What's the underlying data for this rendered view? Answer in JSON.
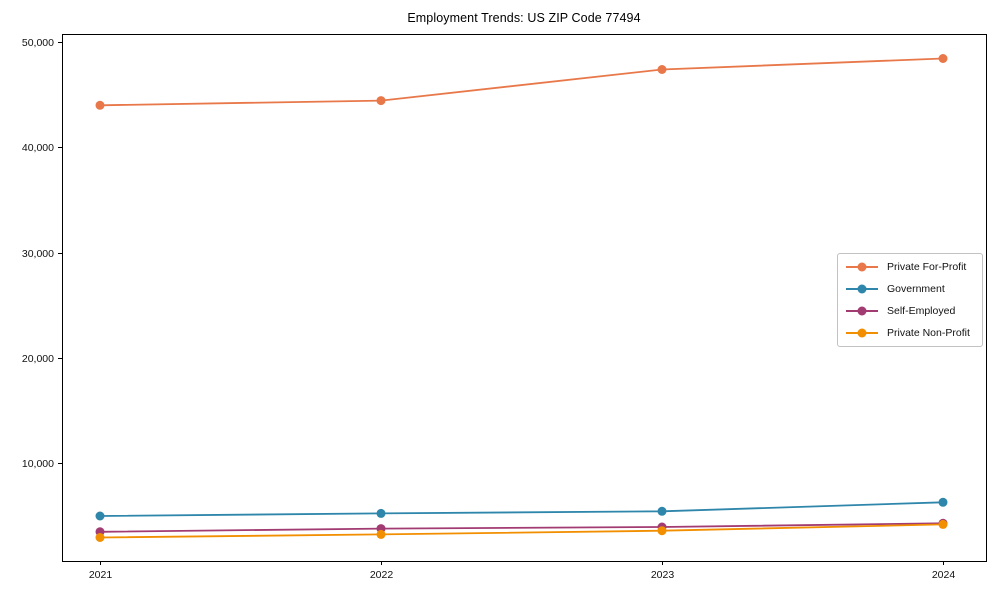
{
  "title": "Employment Trends: US ZIP Code 77494",
  "chart_data": {
    "type": "line",
    "title": "Employment Trends: US ZIP Code 77494",
    "categories": [
      "2021",
      "2022",
      "2023",
      "2024"
    ],
    "series": [
      {
        "name": "Private For-Profit",
        "color": "#E8784A",
        "values": [
          44000,
          44450,
          47400,
          48450
        ]
      },
      {
        "name": "Government",
        "color": "#2E86AB",
        "values": [
          4950,
          5200,
          5400,
          6250
        ]
      },
      {
        "name": "Self-Employed",
        "color": "#A23B72",
        "values": [
          3450,
          3750,
          3900,
          4250
        ]
      },
      {
        "name": "Private Non-Profit",
        "color": "#F18F01",
        "values": [
          2900,
          3200,
          3550,
          4150
        ]
      }
    ],
    "xlabel": "",
    "ylabel": "",
    "ylim": [
      670,
      50780
    ],
    "yticks": [
      {
        "value": 10000,
        "label": "10,000"
      },
      {
        "value": 20000,
        "label": "20,000"
      },
      {
        "value": 30000,
        "label": "30,000"
      },
      {
        "value": 40000,
        "label": "40,000"
      },
      {
        "value": 50000,
        "label": "50,000"
      }
    ],
    "legend_position": "center right",
    "grid": false,
    "marker": "circle",
    "marker_radius": 4.5,
    "line_width": 1.8
  }
}
